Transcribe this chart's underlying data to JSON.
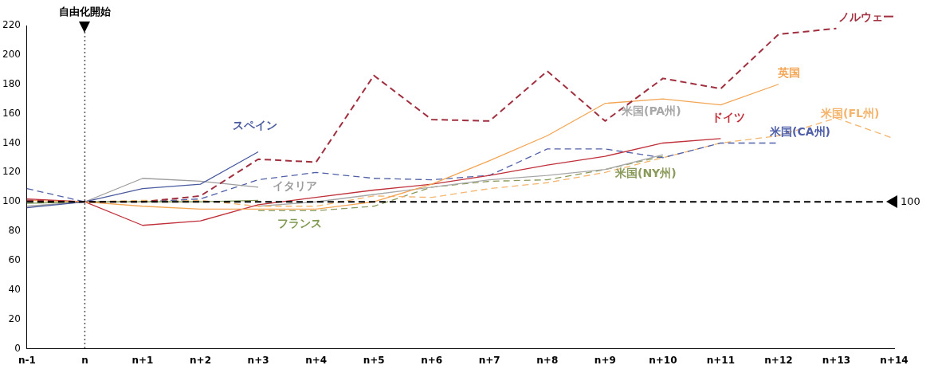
{
  "chart_data": {
    "type": "line",
    "categories": [
      "n-1",
      "n",
      "n+1",
      "n+2",
      "n+3",
      "n+4",
      "n+5",
      "n+6",
      "n+7",
      "n+8",
      "n+9",
      "n+10",
      "n+11",
      "n+12",
      "n+13",
      "n+14"
    ],
    "series": [
      {
        "name": "ノルウェー",
        "color": "#a0303f",
        "line_style": "dashed",
        "values": [
          101,
          100,
          100,
          104,
          129,
          127,
          186,
          156,
          155,
          189,
          155,
          184,
          177,
          214,
          218,
          null
        ]
      },
      {
        "name": "英国",
        "color": "#f3a554",
        "line_style": "solid",
        "values": [
          101,
          100,
          97,
          95,
          95,
          95,
          100,
          112,
          128,
          145,
          167,
          170,
          166,
          180,
          null,
          null
        ]
      },
      {
        "name": "スペイン",
        "color": "#4a5a9e",
        "line_style": "solid",
        "values": [
          96,
          100,
          109,
          112,
          134,
          null,
          null,
          null,
          null,
          null,
          null,
          null,
          null,
          null,
          null,
          null
        ]
      },
      {
        "name": "イタリア",
        "color": "#9c9c9c",
        "line_style": "solid",
        "values": [
          97,
          100,
          116,
          114,
          110,
          null,
          null,
          null,
          null,
          null,
          null,
          null,
          null,
          null,
          null,
          null
        ]
      },
      {
        "name": "フランス",
        "color": "#7f9a50",
        "line_style": "solid",
        "values": [
          99,
          100,
          100,
          100,
          101,
          null,
          null,
          null,
          null,
          null,
          null,
          null,
          null,
          null,
          null,
          null
        ]
      },
      {
        "name": "ドイツ",
        "color": "#c0303a",
        "line_style": "solid",
        "values": [
          102,
          100,
          84,
          87,
          98,
          103,
          108,
          112,
          118,
          125,
          131,
          140,
          143,
          null,
          null,
          null
        ]
      },
      {
        "name": "米国(CA州)",
        "color": "#5060a8",
        "line_style": "dashed",
        "values": [
          109,
          100,
          100,
          102,
          115,
          120,
          116,
          115,
          118,
          136,
          136,
          130,
          140,
          140,
          null,
          null
        ]
      },
      {
        "name": "米国(FL州)",
        "color": "#f5b46c",
        "line_style": "dashed",
        "values": [
          100,
          100,
          101,
          101,
          97,
          97,
          104,
          103,
          109,
          113,
          120,
          130,
          140,
          145,
          157,
          143
        ]
      },
      {
        "name": "米国(PA州)",
        "color": "#a8a8a8",
        "line_style": "solid",
        "values": [
          null,
          null,
          null,
          null,
          97,
          100,
          105,
          110,
          115,
          118,
          122,
          132,
          null,
          null,
          null,
          null
        ]
      },
      {
        "name": "米国(NY州)",
        "color": "#8a9a5a",
        "line_style": "dashed",
        "values": [
          null,
          null,
          null,
          null,
          94,
          94,
          97,
          110,
          114,
          115,
          122,
          131,
          null,
          null,
          null,
          null
        ]
      }
    ],
    "ylim": [
      0,
      220
    ],
    "yticks": [
      0,
      20,
      40,
      60,
      80,
      100,
      120,
      140,
      160,
      180,
      200,
      220
    ],
    "grid": false,
    "legend": false,
    "marker": "none",
    "ref_lines": [
      {
        "axis": "x",
        "value": "n",
        "label": "自由化開始",
        "color": "#555555",
        "line_style": "dotted"
      },
      {
        "axis": "y",
        "value": 100,
        "label": "100",
        "color": "#000000",
        "line_style": "dashed"
      }
    ]
  }
}
